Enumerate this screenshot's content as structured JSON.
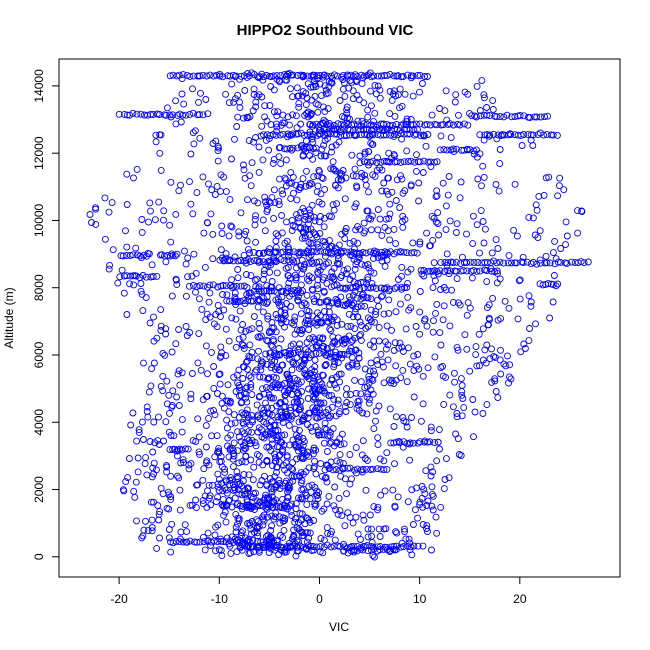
{
  "chart_data": {
    "type": "scatter",
    "title": "HIPPO2 Southbound VIC",
    "xlabel": "VIC",
    "ylabel": "Altitude (m)",
    "xlim": [
      -26,
      30
    ],
    "ylim": [
      -600,
      14800
    ],
    "x_ticks": [
      -20,
      -10,
      0,
      10,
      20
    ],
    "y_ticks": [
      0,
      2000,
      4000,
      6000,
      8000,
      10000,
      12000,
      14000
    ],
    "x_tick_labels": [
      "-20",
      "-10",
      "0",
      "10",
      "20"
    ],
    "y_tick_labels": [
      "0",
      "2000",
      "4000",
      "6000",
      "8000",
      "10000",
      "12000",
      "14000"
    ],
    "marker": "open-circle",
    "point_color": "#0000ff",
    "grid": false,
    "legend": "none",
    "level_segments": [
      {
        "altitude": 14300,
        "x_range": [
          -15,
          11
        ]
      },
      {
        "altitude": 13150,
        "x_range": [
          -20,
          -11
        ]
      },
      {
        "altitude": 13100,
        "x_range": [
          15,
          23
        ]
      },
      {
        "altitude": 12850,
        "x_range": [
          -1,
          15
        ]
      },
      {
        "altitude": 12700,
        "x_range": [
          0,
          10
        ]
      },
      {
        "altitude": 12550,
        "x_range": [
          -6,
          11
        ]
      },
      {
        "altitude": 12550,
        "x_range": [
          16,
          24
        ]
      },
      {
        "altitude": 12150,
        "x_range": [
          -4,
          0
        ]
      },
      {
        "altitude": 12100,
        "x_range": [
          12,
          16
        ]
      },
      {
        "altitude": 11750,
        "x_range": [
          4,
          12
        ]
      },
      {
        "altitude": 9050,
        "x_range": [
          -6,
          10
        ]
      },
      {
        "altitude": 8950,
        "x_range": [
          -16,
          -14
        ]
      },
      {
        "altitude": 8950,
        "x_range": [
          -20,
          -17
        ]
      },
      {
        "altitude": 8800,
        "x_range": [
          -10,
          -2
        ]
      },
      {
        "altitude": 8750,
        "x_range": [
          12,
          27
        ]
      },
      {
        "altitude": 8500,
        "x_range": [
          10,
          18
        ]
      },
      {
        "altitude": 8350,
        "x_range": [
          -20,
          -16
        ]
      },
      {
        "altitude": 8050,
        "x_range": [
          -13,
          -7
        ]
      },
      {
        "altitude": 8100,
        "x_range": [
          22,
          24
        ]
      },
      {
        "altitude": 8000,
        "x_range": [
          2,
          9
        ]
      },
      {
        "altitude": 7900,
        "x_range": [
          -6,
          -2
        ]
      },
      {
        "altitude": 7600,
        "x_range": [
          -9,
          -5
        ]
      },
      {
        "altitude": 3400,
        "x_range": [
          7,
          12
        ]
      },
      {
        "altitude": 3200,
        "x_range": [
          -15,
          -13
        ]
      },
      {
        "altitude": 2600,
        "x_range": [
          1,
          7
        ]
      },
      {
        "altitude": 1500,
        "x_range": [
          -8,
          -3
        ]
      },
      {
        "altitude": 450,
        "x_range": [
          -15,
          -4
        ]
      },
      {
        "altitude": 300,
        "x_range": [
          -8,
          10
        ]
      },
      {
        "altitude": 200,
        "x_range": [
          3,
          8
        ]
      }
    ],
    "cloud_profile": [
      {
        "altitude": 0,
        "x_range": [
          -17,
          11
        ]
      },
      {
        "altitude": 2000,
        "x_range": [
          -20,
          13
        ]
      },
      {
        "altitude": 4000,
        "x_range": [
          -19,
          16
        ]
      },
      {
        "altitude": 6000,
        "x_range": [
          -18,
          21
        ]
      },
      {
        "altitude": 8000,
        "x_range": [
          -20,
          25
        ]
      },
      {
        "altitude": 10000,
        "x_range": [
          -24,
          27
        ]
      },
      {
        "altitude": 11500,
        "x_range": [
          -20,
          25
        ]
      },
      {
        "altitude": 14000,
        "x_range": [
          -14,
          17
        ]
      }
    ]
  }
}
